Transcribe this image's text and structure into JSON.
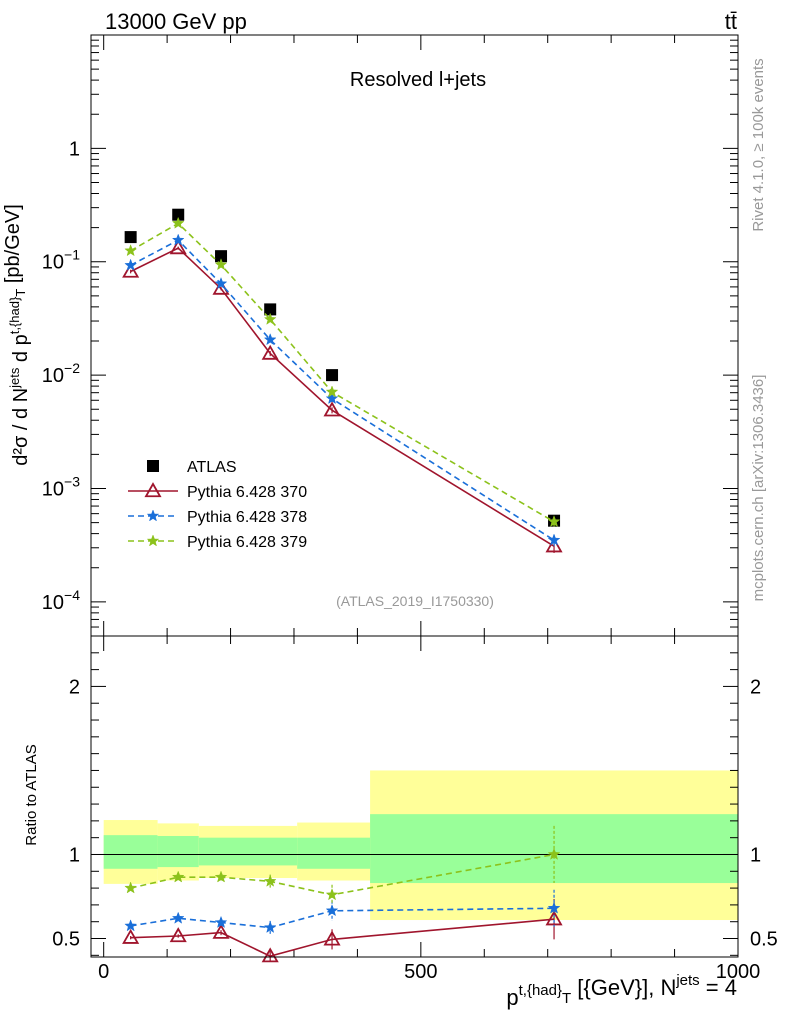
{
  "header": {
    "energy_label": "13000 GeV pp",
    "process_label": "tt̄"
  },
  "side_labels": {
    "rivet": "Rivet 4.1.0, ≥ 100k events",
    "mcplots": "mcplots.cern.ch [arXiv:1306.3436]"
  },
  "chart_data": [
    {
      "type": "scatter",
      "panel": "main",
      "title": "Resolved l+jets",
      "analysis_label": "(ATLAS_2019_I1750330)",
      "ylabel": "d²σ / d N^{jets} d p^{t,{had}}_{T} [pb/GeV]",
      "yscale": "log",
      "ylim": [
        5e-05,
        10
      ],
      "xlim": [
        -20,
        1000
      ],
      "yticks": [
        {
          "value": 0.0001,
          "mant": "10",
          "exp": "−4"
        },
        {
          "value": 0.001,
          "mant": "10",
          "exp": "−3"
        },
        {
          "value": 0.01,
          "mant": "10",
          "exp": "−2"
        },
        {
          "value": 0.1,
          "mant": "10",
          "exp": "−1"
        },
        {
          "value": 1,
          "mant": "1",
          "exp": ""
        }
      ],
      "legend_position": "lower-left",
      "series": [
        {
          "name": "ATLAS",
          "color": "#000000",
          "style": "data",
          "x": [
            42.5,
            117.5,
            185,
            262.5,
            360,
            710
          ],
          "y": [
            0.165,
            0.26,
            0.112,
            0.038,
            0.01,
            0.00052
          ]
        },
        {
          "name": "Pythia 6.428 370",
          "color": "#a0152d",
          "style": "solid",
          "marker": "triangle",
          "x": [
            42.5,
            117.5,
            185,
            262.5,
            360,
            710
          ],
          "y": [
            0.082,
            0.132,
            0.058,
            0.0155,
            0.0049,
            0.00031
          ],
          "err": [
            0.003,
            0.004,
            0.002,
            0.0008,
            0.0003,
            4e-05
          ]
        },
        {
          "name": "Pythia 6.428 378",
          "color": "#1a6fd9",
          "style": "dashed",
          "marker": "star",
          "x": [
            42.5,
            117.5,
            185,
            262.5,
            360,
            710
          ],
          "y": [
            0.093,
            0.155,
            0.064,
            0.0205,
            0.0062,
            0.00035
          ],
          "err": [
            0.003,
            0.004,
            0.002,
            0.0009,
            0.0004,
            4e-05
          ]
        },
        {
          "name": "Pythia 6.428 379",
          "color": "#8cc21b",
          "style": "dashed",
          "marker": "star",
          "x": [
            42.5,
            117.5,
            185,
            262.5,
            360,
            710
          ],
          "y": [
            0.125,
            0.218,
            0.094,
            0.031,
            0.0071,
            0.00051
          ],
          "err": [
            0.003,
            0.005,
            0.003,
            0.001,
            0.0004,
            5e-05
          ]
        }
      ]
    },
    {
      "type": "scatter",
      "panel": "ratio",
      "ylabel": "Ratio to ATLAS",
      "xlabel": "p^{t,{had}}_{T} [{GeV}], N^{jets} = 4",
      "xlim": [
        -20,
        1000
      ],
      "ylim": [
        0.39,
        2.3
      ],
      "xticks": [
        0,
        500,
        1000
      ],
      "yticks": [
        0.5,
        1,
        2
      ],
      "bins": [
        {
          "x_low": 0,
          "x_high": 85,
          "inner": [
            0.915,
            1.115
          ],
          "outer": [
            0.825,
            1.205
          ]
        },
        {
          "x_low": 85,
          "x_high": 150,
          "inner": [
            0.925,
            1.11
          ],
          "outer": [
            0.845,
            1.185
          ]
        },
        {
          "x_low": 150,
          "x_high": 305,
          "inner": [
            0.935,
            1.1
          ],
          "outer": [
            0.86,
            1.17
          ]
        },
        {
          "x_low": 305,
          "x_high": 420,
          "inner": [
            0.915,
            1.1
          ],
          "outer": [
            0.845,
            1.19
          ]
        },
        {
          "x_low": 420,
          "x_high": 1000,
          "inner": [
            0.83,
            1.24
          ],
          "outer": [
            0.61,
            1.5
          ]
        }
      ],
      "series": [
        {
          "name": "Pythia 6.428 370",
          "color": "#a0152d",
          "style": "solid",
          "marker": "triangle",
          "x": [
            42.5,
            117.5,
            185,
            262.5,
            360,
            710
          ],
          "y": [
            0.505,
            0.515,
            0.535,
            0.395,
            0.495,
            0.615
          ],
          "err": [
            0.01,
            0.01,
            0.015,
            0.03,
            0.06,
            0.12
          ]
        },
        {
          "name": "Pythia 6.428 378",
          "color": "#1a6fd9",
          "style": "dashed",
          "marker": "star",
          "x": [
            42.5,
            117.5,
            185,
            262.5,
            360,
            710
          ],
          "y": [
            0.575,
            0.62,
            0.595,
            0.565,
            0.665,
            0.68
          ],
          "err": [
            0.015,
            0.015,
            0.02,
            0.04,
            0.06,
            0.11
          ]
        },
        {
          "name": "Pythia 6.428 379",
          "color": "#8cc21b",
          "style": "dashed",
          "marker": "star",
          "x": [
            42.5,
            117.5,
            185,
            262.5,
            360,
            710
          ],
          "y": [
            0.8,
            0.865,
            0.865,
            0.84,
            0.76,
            1.0
          ],
          "err": [
            0.015,
            0.015,
            0.02,
            0.04,
            0.06,
            0.17
          ]
        }
      ]
    }
  ]
}
